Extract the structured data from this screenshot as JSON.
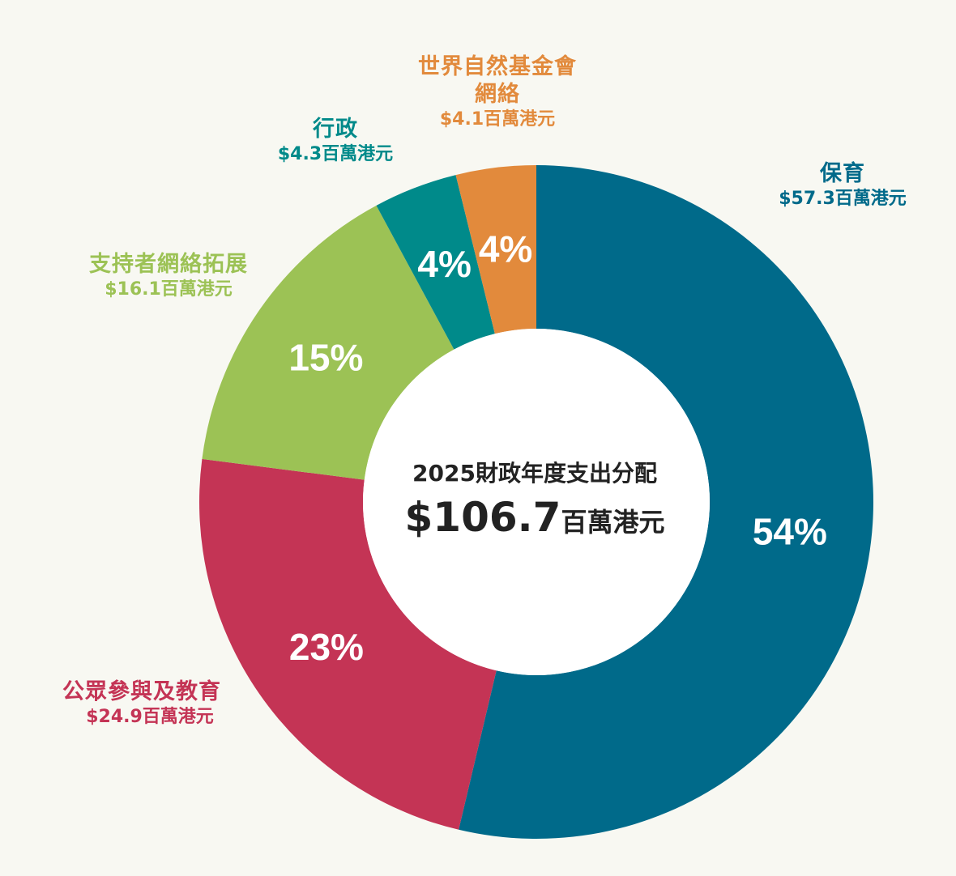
{
  "chart_data": {
    "type": "pie",
    "title": "2025財政年度支出分配",
    "total_value": "$106.7",
    "total_unit": "百萬港元",
    "slices": [
      {
        "name": "保育",
        "amount": "$57.3百萬港元",
        "value": 57.3,
        "percent_label": "54%",
        "color": "#006a8a"
      },
      {
        "name": "公眾參與及教育",
        "amount": "$24.9百萬港元",
        "value": 24.9,
        "percent_label": "23%",
        "color": "#c43455"
      },
      {
        "name": "支持者網絡拓展",
        "amount": "$16.1百萬港元",
        "value": 16.1,
        "percent_label": "15%",
        "color": "#9cc255"
      },
      {
        "name": "行政",
        "amount": "$4.3百萬港元",
        "value": 4.3,
        "percent_label": "4%",
        "color": "#008a8a"
      },
      {
        "name": "世界自然基金會網絡",
        "name_lines": [
          "世界自然基金會",
          "網絡"
        ],
        "amount": "$4.1百萬港元",
        "value": 4.1,
        "percent_label": "4%",
        "color": "#e28a3c"
      }
    ]
  }
}
